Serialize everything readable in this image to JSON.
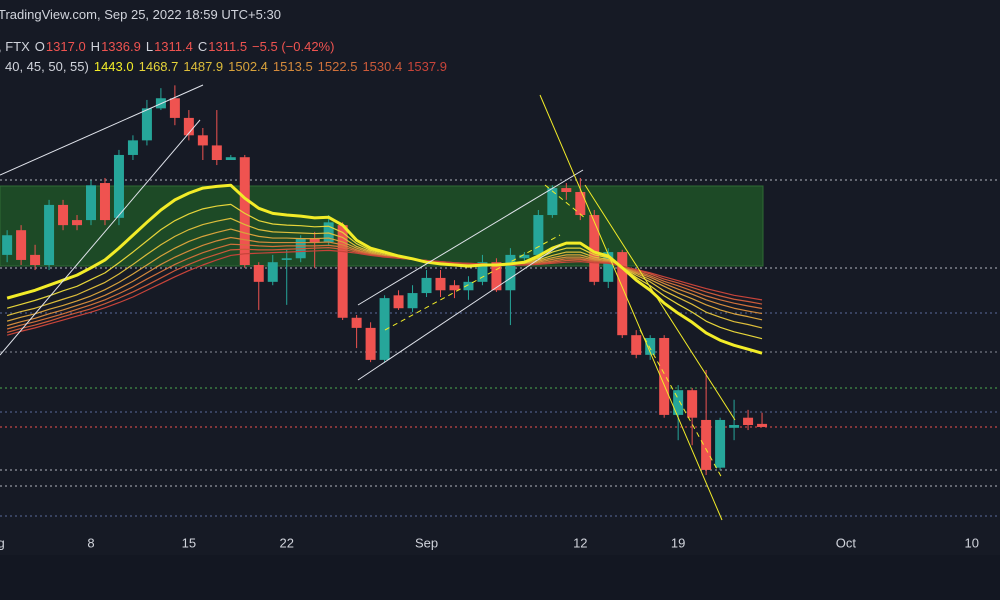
{
  "header": {
    "source": "TradingView.com, Sep 25, 2022 18:59 UTC+5:30",
    "symbol": ", FTX",
    "status_letters": [
      "O",
      "H",
      "L",
      "C"
    ],
    "status_values": [
      "1317.0",
      "1336.9",
      "1311.4",
      "1311.5"
    ],
    "change": "−5.5 (−0.42%)",
    "ema_params": "40, 45, 50, 55)"
  },
  "chart_data": {
    "type": "candlestick",
    "up_color": "#26a69a",
    "down_color": "#ef5350",
    "ylim": [
      1128,
      2072
    ],
    "categories": [
      "Aug",
      null,
      null,
      null,
      null,
      null,
      null,
      "8",
      null,
      null,
      null,
      null,
      null,
      null,
      "15",
      null,
      null,
      null,
      null,
      null,
      null,
      "22",
      null,
      null,
      null,
      null,
      null,
      null,
      null,
      null,
      null,
      "Sep",
      null,
      null,
      null,
      null,
      null,
      null,
      null,
      null,
      null,
      null,
      "12",
      null,
      null,
      null,
      null,
      null,
      null,
      "19",
      null,
      null,
      null,
      null,
      null,
      null,
      null,
      null,
      null,
      null,
      null,
      "Oct",
      null,
      null,
      null,
      null,
      null,
      null,
      null,
      null,
      "10"
    ],
    "open": [
      null,
      1618,
      1662,
      1618,
      1600,
      1707,
      1680,
      1680,
      1746,
      1684,
      1796,
      1822,
      1879,
      1897,
      1862,
      1831,
      1813,
      1787,
      1792,
      1600,
      1570,
      1609,
      1612,
      1648,
      1641,
      1671,
      1506,
      1488,
      1431,
      1546,
      1523,
      1550,
      1577,
      1564,
      1555,
      1570,
      1605,
      1555,
      1612,
      1618,
      1689,
      1737,
      1730,
      1689,
      1570,
      1623,
      1475,
      1440,
      1470,
      1333,
      1377,
      1324,
      1239,
      1310,
      1328,
      1317.0,
      null,
      null,
      null,
      null,
      null,
      null,
      null,
      null,
      null,
      null,
      null,
      null,
      null,
      null,
      null
    ],
    "high": [
      null,
      1662,
      1671,
      1636,
      1716,
      1716,
      1689,
      1751,
      1755,
      1805,
      1831,
      1894,
      1915,
      1920,
      1876,
      1844,
      1876,
      1796,
      1796,
      1605,
      1618,
      1627,
      1653,
      1659,
      1689,
      1676,
      1511,
      1498,
      1546,
      1555,
      1564,
      1591,
      1591,
      1573,
      1580,
      1618,
      1612,
      1630,
      1623,
      1698,
      1742,
      1746,
      1755,
      1698,
      1630,
      1627,
      1484,
      1475,
      1475,
      1386,
      1381,
      1413,
      1328,
      1360,
      1342,
      1336.9,
      null,
      null,
      null,
      null,
      null,
      null,
      null,
      null,
      null,
      null,
      null,
      null,
      null,
      null,
      null
    ],
    "low": [
      null,
      1605,
      1600,
      1591,
      1591,
      1662,
      1662,
      1671,
      1671,
      1671,
      1787,
      1813,
      1876,
      1849,
      1822,
      1787,
      1778,
      1787,
      1595,
      1520,
      1564,
      1529,
      1605,
      1595,
      1636,
      1502,
      1452,
      1427,
      1427,
      1520,
      1516,
      1543,
      1543,
      1541,
      1538,
      1564,
      1552,
      1493,
      1605,
      1612,
      1684,
      1716,
      1680,
      1564,
      1559,
      1470,
      1434,
      1431,
      1328,
      1288,
      1279,
      1226,
      1235,
      1288,
      1306,
      1311.4,
      null,
      null,
      null,
      null,
      null,
      null,
      null,
      null,
      null,
      null,
      null,
      null,
      null,
      null,
      null
    ],
    "close": [
      null,
      1653,
      1609,
      1600,
      1707,
      1671,
      1671,
      1742,
      1680,
      1796,
      1822,
      1879,
      1897,
      1862,
      1831,
      1813,
      1787,
      1792,
      1600,
      1570,
      1605,
      1612,
      1648,
      1641,
      1676,
      1506,
      1488,
      1431,
      1541,
      1523,
      1550,
      1577,
      1555,
      1555,
      1570,
      1605,
      1555,
      1618,
      1618,
      1689,
      1737,
      1730,
      1689,
      1570,
      1623,
      1475,
      1440,
      1470,
      1333,
      1377,
      1328,
      1235,
      1324,
      1315,
      1315,
      1311.5,
      null,
      null,
      null,
      null,
      null,
      null,
      null,
      null,
      null,
      null,
      null,
      null,
      null,
      null,
      null
    ],
    "series": [
      {
        "color": "#f2ec28",
        "width": 3,
        "status_label": "1443.0",
        "values": [
          null,
          1541,
          1548,
          1555,
          1564,
          1573,
          1582,
          1595,
          1609,
          1630,
          1653,
          1676,
          1698,
          1716,
          1728,
          1737,
          1740,
          1742,
          1719,
          1701,
          1692,
          1689,
          1687,
          1684,
          1685,
          1671,
          1644,
          1630,
          1623,
          1616,
          1611,
          1605,
          1602,
          1600,
          1598,
          1600,
          1600,
          1602,
          1605,
          1616,
          1630,
          1639,
          1639,
          1623,
          1616,
          1595,
          1573,
          1555,
          1532,
          1514,
          1498,
          1479,
          1466,
          1457,
          1450,
          1443.0,
          null,
          null,
          null,
          null,
          null,
          null,
          null,
          null,
          null,
          null,
          null,
          null,
          null,
          null,
          null
        ]
      },
      {
        "color": "#e6d53a",
        "width": 1.2,
        "status_label": "1468.7",
        "values": [
          null,
          1523,
          1530,
          1537,
          1545,
          1554,
          1562,
          1574,
          1586,
          1604,
          1623,
          1643,
          1663,
          1679,
          1691,
          1700,
          1705,
          1708,
          1692,
          1679,
          1673,
          1671,
          1670,
          1668,
          1669,
          1658,
          1638,
          1626,
          1621,
          1615,
          1611,
          1606,
          1603,
          1601,
          1599,
          1601,
          1600,
          1601,
          1604,
          1612,
          1623,
          1630,
          1630,
          1618,
          1613,
          1596,
          1578,
          1563,
          1545,
          1530,
          1516,
          1500,
          1489,
          1481,
          1475,
          1468.7,
          null,
          null,
          null,
          null,
          null,
          null,
          null,
          null,
          null,
          null,
          null,
          null,
          null,
          null,
          null
        ]
      },
      {
        "color": "#ddbd3b",
        "width": 1.2,
        "status_label": "1487.9",
        "values": [
          null,
          1510,
          1517,
          1523,
          1531,
          1539,
          1547,
          1558,
          1569,
          1584,
          1601,
          1619,
          1636,
          1651,
          1663,
          1672,
          1678,
          1683,
          1672,
          1663,
          1659,
          1658,
          1657,
          1656,
          1657,
          1649,
          1633,
          1624,
          1619,
          1614,
          1611,
          1606,
          1604,
          1602,
          1600,
          1601,
          1600,
          1601,
          1603,
          1609,
          1617,
          1623,
          1623,
          1614,
          1610,
          1596,
          1582,
          1570,
          1554,
          1542,
          1530,
          1516,
          1507,
          1499,
          1494,
          1487.9,
          null,
          null,
          null,
          null,
          null,
          null,
          null,
          null,
          null,
          null,
          null,
          null,
          null,
          null,
          null
        ]
      },
      {
        "color": "#d8a33c",
        "width": 1.2,
        "status_label": "1502.4",
        "values": [
          null,
          1500,
          1507,
          1513,
          1521,
          1528,
          1536,
          1545,
          1556,
          1569,
          1584,
          1600,
          1616,
          1630,
          1642,
          1651,
          1658,
          1664,
          1657,
          1651,
          1648,
          1648,
          1647,
          1647,
          1648,
          1641,
          1630,
          1622,
          1617,
          1613,
          1610,
          1607,
          1605,
          1603,
          1601,
          1601,
          1601,
          1601,
          1602,
          1607,
          1613,
          1618,
          1618,
          1611,
          1608,
          1597,
          1585,
          1574,
          1562,
          1550,
          1540,
          1529,
          1520,
          1513,
          1508,
          1502.4,
          null,
          null,
          null,
          null,
          null,
          null,
          null,
          null,
          null,
          null,
          null,
          null,
          null,
          null,
          null
        ]
      },
      {
        "color": "#d48a3c",
        "width": 1.2,
        "status_label": "1513.5",
        "values": [
          null,
          1492,
          1499,
          1505,
          1513,
          1520,
          1528,
          1536,
          1546,
          1558,
          1571,
          1586,
          1601,
          1614,
          1625,
          1635,
          1643,
          1649,
          1645,
          1641,
          1640,
          1640,
          1640,
          1640,
          1641,
          1636,
          1627,
          1620,
          1616,
          1613,
          1610,
          1607,
          1605,
          1603,
          1602,
          1601,
          1601,
          1601,
          1601,
          1605,
          1610,
          1614,
          1614,
          1609,
          1606,
          1597,
          1587,
          1578,
          1567,
          1557,
          1548,
          1538,
          1530,
          1523,
          1518,
          1513.5,
          null,
          null,
          null,
          null,
          null,
          null,
          null,
          null,
          null,
          null,
          null,
          null,
          null,
          null,
          null
        ]
      },
      {
        "color": "#d0713b",
        "width": 1.2,
        "status_label": "1522.5",
        "values": [
          null,
          1486,
          1493,
          1499,
          1506,
          1513,
          1521,
          1529,
          1538,
          1549,
          1561,
          1575,
          1588,
          1601,
          1612,
          1622,
          1630,
          1637,
          1636,
          1634,
          1633,
          1634,
          1634,
          1634,
          1635,
          1632,
          1625,
          1619,
          1615,
          1613,
          1610,
          1608,
          1605,
          1603,
          1602,
          1602,
          1601,
          1600,
          1601,
          1603,
          1607,
          1611,
          1611,
          1607,
          1605,
          1598,
          1589,
          1581,
          1571,
          1563,
          1554,
          1545,
          1538,
          1532,
          1527,
          1522.5,
          null,
          null,
          null,
          null,
          null,
          null,
          null,
          null,
          null,
          null,
          null,
          null,
          null,
          null,
          null
        ]
      },
      {
        "color": "#cc5a3a",
        "width": 1.2,
        "status_label": "1530.4",
        "values": [
          null,
          1480,
          1487,
          1493,
          1500,
          1508,
          1515,
          1522,
          1531,
          1541,
          1552,
          1564,
          1577,
          1590,
          1601,
          1611,
          1619,
          1627,
          1628,
          1627,
          1627,
          1628,
          1629,
          1630,
          1631,
          1628,
          1623,
          1618,
          1615,
          1612,
          1610,
          1608,
          1606,
          1604,
          1603,
          1602,
          1601,
          1600,
          1600,
          1602,
          1605,
          1608,
          1609,
          1606,
          1604,
          1598,
          1591,
          1584,
          1575,
          1568,
          1560,
          1552,
          1545,
          1539,
          1535,
          1530.4,
          null,
          null,
          null,
          null,
          null,
          null,
          null,
          null,
          null,
          null,
          null,
          null,
          null,
          null,
          null
        ]
      },
      {
        "color": "#c8443a",
        "width": 1.2,
        "status_label": "1537.9",
        "values": [
          null,
          1475,
          1482,
          1488,
          1495,
          1502,
          1509,
          1516,
          1524,
          1533,
          1543,
          1555,
          1567,
          1579,
          1590,
          1600,
          1609,
          1617,
          1620,
          1621,
          1622,
          1623,
          1624,
          1625,
          1626,
          1624,
          1621,
          1617,
          1614,
          1612,
          1610,
          1608,
          1606,
          1604,
          1603,
          1602,
          1601,
          1600,
          1600,
          1601,
          1603,
          1605,
          1606,
          1604,
          1603,
          1598,
          1592,
          1586,
          1579,
          1572,
          1565,
          1558,
          1552,
          1546,
          1542,
          1537.9,
          null,
          null,
          null,
          null,
          null,
          null,
          null,
          null,
          null,
          null,
          null,
          null,
          null,
          null,
          null
        ]
      }
    ]
  }
}
